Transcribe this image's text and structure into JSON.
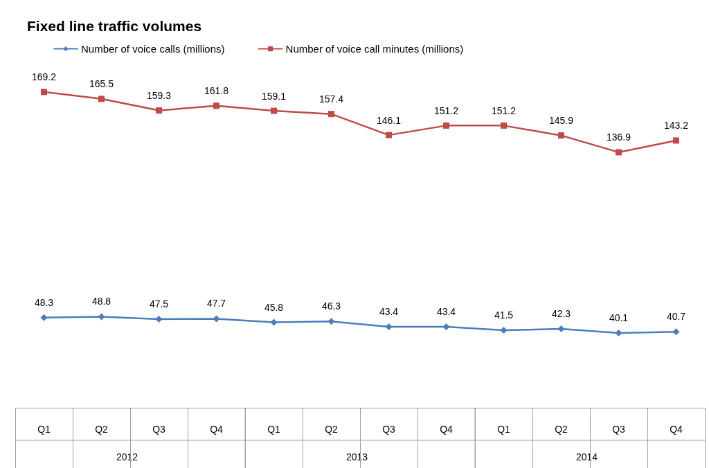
{
  "chart_data": {
    "type": "line",
    "title": "Fixed line traffic volumes",
    "categories": [
      "Q1",
      "Q2",
      "Q3",
      "Q4",
      "Q1",
      "Q2",
      "Q3",
      "Q4",
      "Q1",
      "Q2",
      "Q3",
      "Q4"
    ],
    "series": [
      {
        "name": "Number of voice calls (millions)",
        "color": "#4a7ebb",
        "marker": "diamond",
        "values": [
          48.3,
          48.8,
          47.5,
          47.7,
          45.8,
          46.3,
          43.4,
          43.4,
          41.5,
          42.3,
          40.1,
          40.7
        ]
      },
      {
        "name": "Number of voice call minutes (millions)",
        "color": "#be4b48",
        "marker": "square",
        "values": [
          169.2,
          165.5,
          159.3,
          161.8,
          159.1,
          157.4,
          146.1,
          151.2,
          151.2,
          145.9,
          136.9,
          143.2
        ]
      }
    ],
    "annotations": [
      "2012",
      "2013",
      "2014"
    ],
    "data_labels": true,
    "legend": "top left",
    "grid": false,
    "line_style": "solid"
  }
}
